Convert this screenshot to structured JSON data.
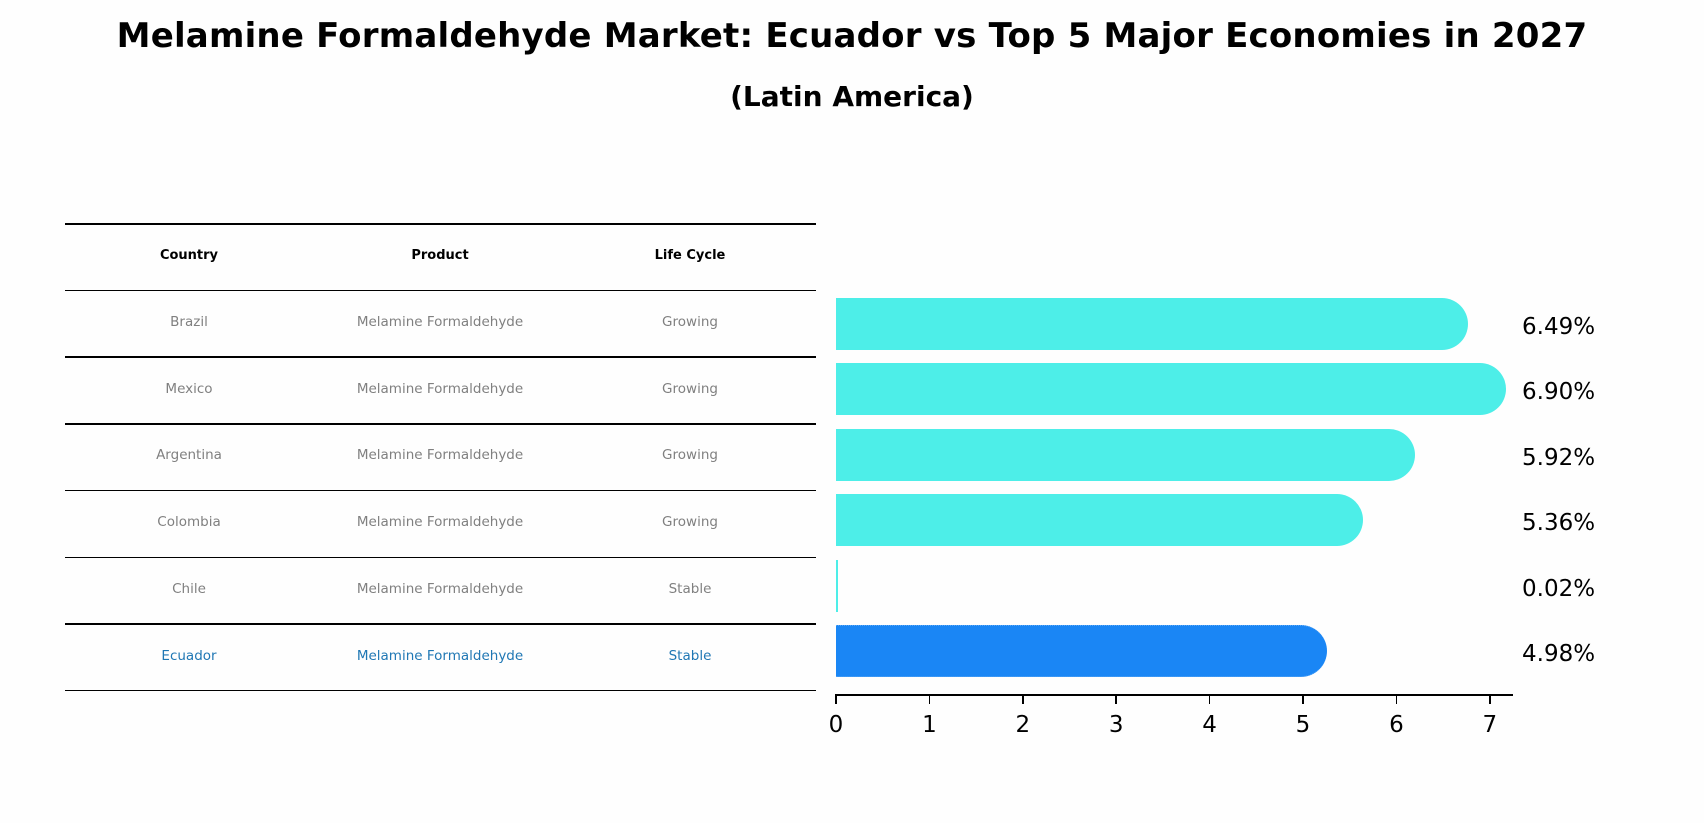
{
  "header": {
    "title": "Melamine Formaldehyde Market: Ecuador vs Top 5 Major Economies in 2027",
    "subtitle": "(Latin America)"
  },
  "table": {
    "columns": [
      "Country",
      "Product",
      "Life Cycle"
    ],
    "rows": [
      {
        "country": "Brazil",
        "product": "Melamine Formaldehyde",
        "life_cycle": "Growing",
        "highlight": false
      },
      {
        "country": "Mexico",
        "product": "Melamine Formaldehyde",
        "life_cycle": "Growing",
        "highlight": false
      },
      {
        "country": "Argentina",
        "product": "Melamine Formaldehyde",
        "life_cycle": "Growing",
        "highlight": false
      },
      {
        "country": "Colombia",
        "product": "Melamine Formaldehyde",
        "life_cycle": "Growing",
        "highlight": false
      },
      {
        "country": "Chile",
        "product": "Melamine Formaldehyde",
        "life_cycle": "Stable",
        "highlight": false
      },
      {
        "country": "Ecuador",
        "product": "Melamine Formaldehyde",
        "life_cycle": "Stable",
        "highlight": true
      }
    ]
  },
  "colors": {
    "bar_default": "#4deee8",
    "bar_highlight": "#1a86f5",
    "text_muted": "#808080",
    "text_highlight": "#1f77b4"
  },
  "chart_data": {
    "type": "bar",
    "orientation": "horizontal",
    "title": "Melamine Formaldehyde Market: Ecuador vs Top 5 Major Economies in 2027",
    "subtitle": "(Latin America)",
    "categories": [
      "Brazil",
      "Mexico",
      "Argentina",
      "Colombia",
      "Chile",
      "Ecuador"
    ],
    "values": [
      6.49,
      6.9,
      5.92,
      5.36,
      0.02,
      4.98
    ],
    "value_labels": [
      "6.49%",
      "6.90%",
      "5.92%",
      "5.36%",
      "0.02%",
      "4.98%"
    ],
    "highlight": "Ecuador",
    "xlabel": "",
    "ylabel": "",
    "xlim": [
      0,
      7.25
    ],
    "xticks": [
      0,
      1,
      2,
      3,
      4,
      5,
      6,
      7
    ],
    "grid": false,
    "legend": null
  }
}
